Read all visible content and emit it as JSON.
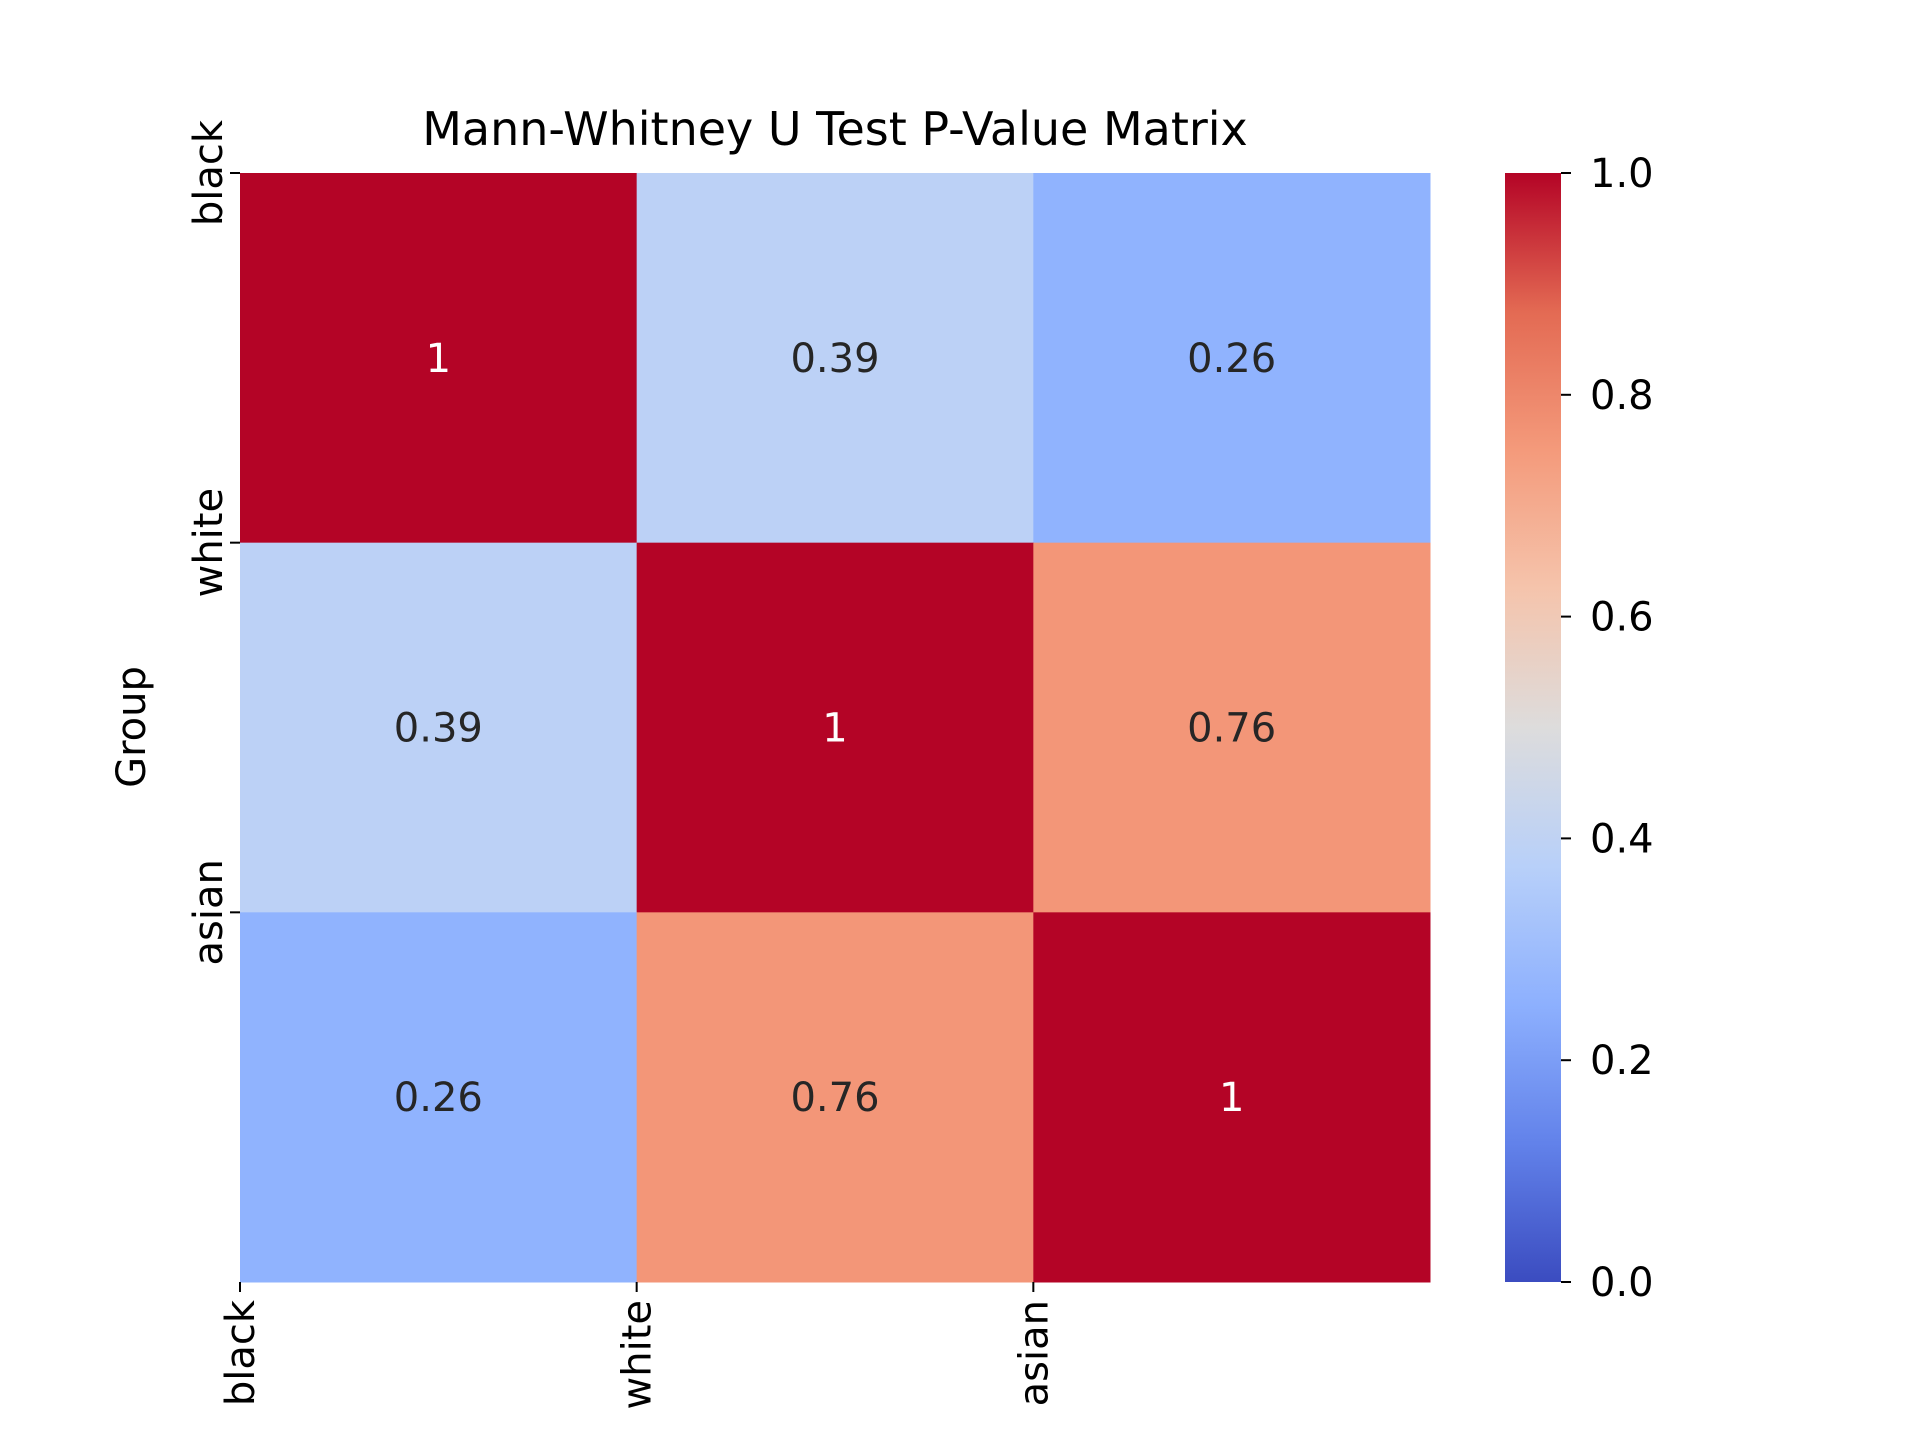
{
  "chart_data": {
    "type": "heatmap",
    "title": "Mann-Whitney U Test P-Value Matrix",
    "xlabel": "",
    "ylabel": "Group",
    "x_categories": [
      "black",
      "white",
      "asian"
    ],
    "y_categories": [
      "black",
      "white",
      "asian"
    ],
    "values": [
      [
        1,
        0.39,
        0.26
      ],
      [
        0.39,
        1,
        0.76
      ],
      [
        0.26,
        0.76,
        1
      ]
    ],
    "annotations": [
      [
        "1",
        "0.39",
        "0.26"
      ],
      [
        "0.39",
        "1",
        "0.76"
      ],
      [
        "0.26",
        "0.76",
        "1"
      ]
    ],
    "colormap": "coolwarm",
    "colorbar": {
      "range": [
        0,
        1
      ],
      "ticks": [
        "0.0",
        "0.2",
        "0.4",
        "0.6",
        "0.8",
        "1.0"
      ]
    },
    "colors": {
      "low": "#3b4cc0",
      "mid": "#dddcdc",
      "high": "#b40426"
    }
  }
}
